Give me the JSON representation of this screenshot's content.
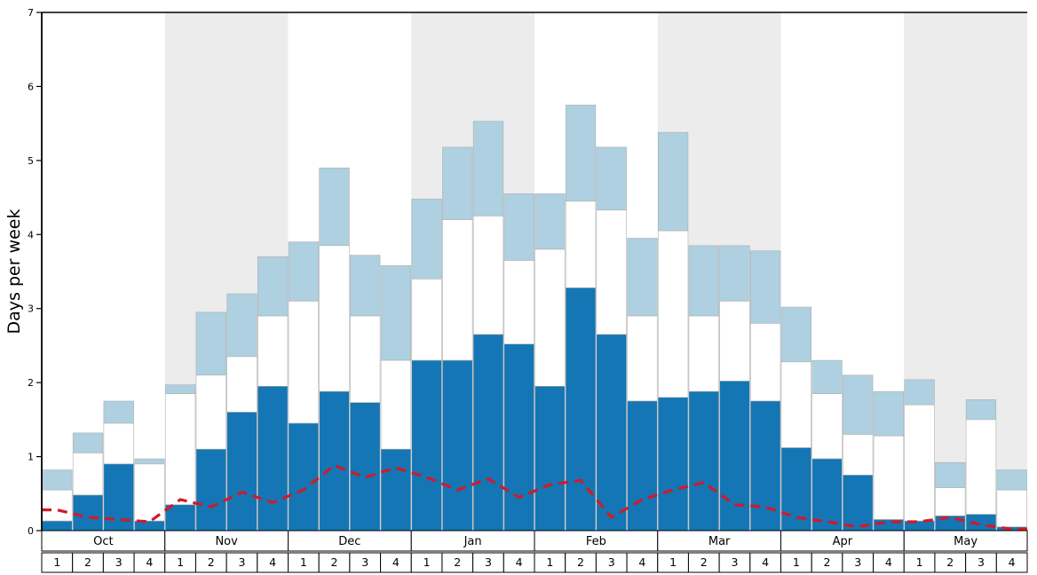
{
  "chart_data": {
    "type": "bar",
    "title": "",
    "ylabel": "Days per week",
    "ylim": [
      0,
      7
    ],
    "yticks": [
      0,
      1,
      2,
      3,
      4,
      5,
      6,
      7
    ],
    "grid": false,
    "legend": "none",
    "months": [
      "Oct",
      "Nov",
      "Dec",
      "Jan",
      "Feb",
      "Mar",
      "Apr",
      "May"
    ],
    "weeks_per_month": 4,
    "week_labels": [
      "1",
      "2",
      "3",
      "4"
    ],
    "stack_note": "cumulative tops of stacked segments per week: dark blue bottom, white middle, light blue top",
    "stack": {
      "dark_blue_top": [
        0.13,
        0.48,
        0.9,
        0.13,
        0.35,
        1.1,
        1.6,
        1.95,
        1.45,
        1.88,
        1.73,
        1.1,
        2.3,
        2.3,
        2.65,
        2.52,
        1.95,
        3.28,
        2.65,
        1.75,
        1.8,
        1.88,
        2.02,
        1.75,
        1.12,
        0.97,
        0.75,
        0.15,
        0.13,
        0.2,
        0.22,
        0.05
      ],
      "white_top": [
        0.55,
        1.05,
        1.45,
        0.9,
        1.85,
        2.1,
        2.35,
        2.9,
        3.1,
        3.85,
        2.9,
        2.3,
        3.4,
        4.2,
        4.25,
        3.65,
        3.8,
        4.45,
        4.33,
        2.9,
        4.05,
        2.9,
        3.1,
        2.8,
        2.28,
        1.85,
        1.3,
        1.28,
        1.7,
        0.58,
        1.5,
        0.55
      ],
      "light_blue_top": [
        0.82,
        1.32,
        1.75,
        0.97,
        1.97,
        2.95,
        3.2,
        3.7,
        3.9,
        4.9,
        3.72,
        3.58,
        4.48,
        5.18,
        5.53,
        4.55,
        4.55,
        5.75,
        5.18,
        3.95,
        5.38,
        3.85,
        3.85,
        3.78,
        3.02,
        2.3,
        2.1,
        1.88,
        2.04,
        0.92,
        1.77,
        0.82
      ]
    },
    "line": {
      "name": "red-dashed-line",
      "values": [
        0.28,
        0.18,
        0.15,
        0.12,
        0.42,
        0.32,
        0.52,
        0.38,
        0.55,
        0.88,
        0.72,
        0.85,
        0.72,
        0.55,
        0.7,
        0.45,
        0.62,
        0.68,
        0.18,
        0.42,
        0.55,
        0.65,
        0.35,
        0.32,
        0.18,
        0.12,
        0.05,
        0.12,
        0.12,
        0.18,
        0.08,
        0.02
      ]
    }
  },
  "colors": {
    "dark_blue": "#1476b4",
    "light_blue": "#aed0e0",
    "white_segment": "#ffffff",
    "bar_stroke": "#b0b0b0",
    "band_gray": "#ececec",
    "red_line": "#d11a28",
    "axis_black": "#000000"
  }
}
